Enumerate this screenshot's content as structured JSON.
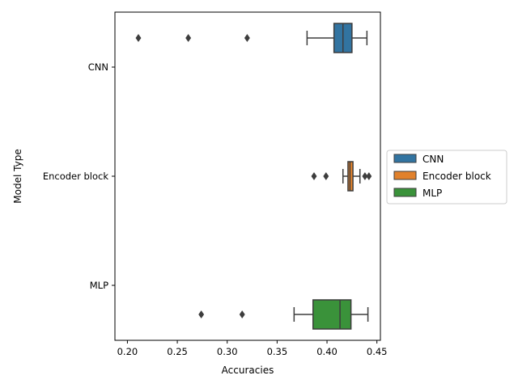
{
  "chart_data": {
    "type": "box",
    "orientation": "horizontal",
    "xlabel": "Accuracies",
    "ylabel": "Model Type",
    "xlim": [
      0.2,
      0.45
    ],
    "xticks": [
      0.2,
      0.25,
      0.3,
      0.35,
      0.4,
      0.45
    ],
    "xtick_labels": [
      "0.20",
      "0.25",
      "0.30",
      "0.35",
      "0.40",
      "0.45"
    ],
    "categories": [
      "CNN",
      "Encoder block",
      "MLP"
    ],
    "legend": {
      "placement": "right",
      "entries": [
        "CNN",
        "Encoder block",
        "MLP"
      ]
    },
    "series": [
      {
        "name": "CNN",
        "category": "CNN",
        "slot": 0,
        "color": "#3274a1",
        "whisker_low": 0.38,
        "q1": 0.407,
        "median": 0.416,
        "q3": 0.425,
        "whisker_high": 0.44,
        "outliers": [
          0.211,
          0.261,
          0.32
        ]
      },
      {
        "name": "Encoder block",
        "category": "Encoder block",
        "slot": 1,
        "color": "#e1812c",
        "whisker_low": 0.416,
        "q1": 0.421,
        "median": 0.423,
        "q3": 0.426,
        "whisker_high": 0.433,
        "outliers": [
          0.387,
          0.399,
          0.438,
          0.442
        ]
      },
      {
        "name": "MLP",
        "category": "MLP",
        "slot": 2,
        "color": "#3a923a",
        "whisker_low": 0.367,
        "q1": 0.386,
        "median": 0.413,
        "q3": 0.424,
        "whisker_high": 0.441,
        "outliers": [
          0.274,
          0.315
        ]
      }
    ]
  }
}
